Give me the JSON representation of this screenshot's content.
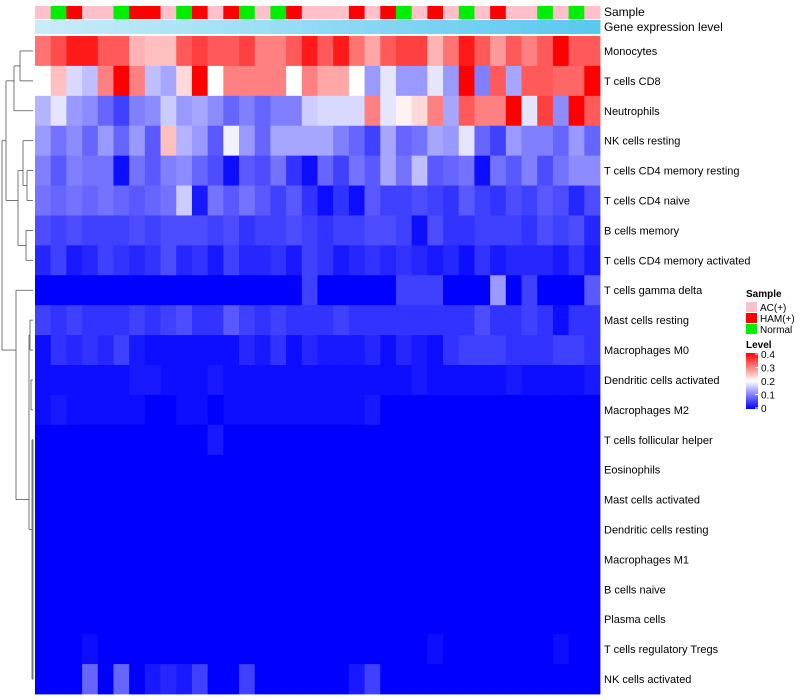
{
  "chart_data": {
    "type": "heatmap",
    "title": "",
    "annotation_rows": {
      "sample_label": "Sample",
      "expression_label": "Gene expression level"
    },
    "sample_groups": [
      "AC(+)",
      "HAM(+)",
      "Normal"
    ],
    "sample_group_colors": {
      "AC(+)": "#ffc0cb",
      "HAM(+)": "#ff0000",
      "Normal": "#00ee00"
    },
    "samples": [
      "AC(+)",
      "Normal",
      "HAM(+)",
      "AC(+)",
      "AC(+)",
      "Normal",
      "HAM(+)",
      "HAM(+)",
      "AC(+)",
      "Normal",
      "HAM(+)",
      "AC(+)",
      "HAM(+)",
      "Normal",
      "AC(+)",
      "Normal",
      "HAM(+)",
      "AC(+)",
      "AC(+)",
      "AC(+)",
      "HAM(+)",
      "AC(+)",
      "HAM(+)",
      "Normal",
      "AC(+)",
      "HAM(+)",
      "AC(+)",
      "Normal",
      "AC(+)",
      "HAM(+)",
      "AC(+)",
      "AC(+)",
      "Normal",
      "AC(+)",
      "Normal",
      "AC(+)"
    ],
    "expression_bar_colors": [
      "#c8ecf8",
      "#5bc8ef"
    ],
    "rows": [
      "Monocytes",
      "T cells CD8",
      "Neutrophils",
      "NK cells resting",
      "T cells CD4 memory resting",
      "T cells CD4 naive",
      "B cells memory",
      "T cells CD4 memory activated",
      "T cells gamma delta",
      "Mast cells resting",
      "Macrophages M0",
      "Dendritic cells activated",
      "Macrophages M2",
      "T cells follicular helper",
      "Eosinophils",
      "Mast cells activated",
      "Dendritic cells resting",
      "Macrophages M1",
      "B cells naive",
      "Plasma cells",
      "T cells regulatory  Tregs",
      "NK cells activated"
    ],
    "values": [
      [
        0.31,
        0.34,
        0.38,
        0.38,
        0.33,
        0.33,
        0.26,
        0.25,
        0.25,
        0.33,
        0.35,
        0.33,
        0.33,
        0.35,
        0.3,
        0.3,
        0.33,
        0.38,
        0.33,
        0.38,
        0.31,
        0.27,
        0.33,
        0.35,
        0.35,
        0.26,
        0.31,
        0.38,
        0.33,
        0.28,
        0.33,
        0.3,
        0.33,
        0.4,
        0.33,
        0.33
      ],
      [
        0.2,
        0.25,
        0.17,
        0.15,
        0.3,
        0.4,
        0.3,
        0.15,
        0.13,
        0.23,
        0.4,
        0.2,
        0.3,
        0.3,
        0.3,
        0.3,
        0.2,
        0.3,
        0.27,
        0.27,
        0.2,
        0.12,
        0.18,
        0.12,
        0.12,
        0.18,
        0.12,
        0.4,
        0.1,
        0.33,
        0.13,
        0.33,
        0.33,
        0.32,
        0.32,
        0.4
      ],
      [
        0.14,
        0.18,
        0.12,
        0.11,
        0.08,
        0.05,
        0.1,
        0.11,
        0.16,
        0.12,
        0.13,
        0.11,
        0.08,
        0.1,
        0.08,
        0.1,
        0.1,
        0.16,
        0.17,
        0.17,
        0.17,
        0.3,
        0.18,
        0.21,
        0.23,
        0.3,
        0.13,
        0.33,
        0.3,
        0.3,
        0.4,
        0.18,
        0.35,
        0.11,
        0.4,
        0.33
      ],
      [
        0.12,
        0.09,
        0.11,
        0.08,
        0.12,
        0.08,
        0.12,
        0.07,
        0.25,
        0.14,
        0.12,
        0.07,
        0.19,
        0.12,
        0.08,
        0.13,
        0.13,
        0.13,
        0.13,
        0.1,
        0.08,
        0.05,
        0.13,
        0.08,
        0.09,
        0.13,
        0.12,
        0.18,
        0.08,
        0.05,
        0.12,
        0.1,
        0.1,
        0.08,
        0.12,
        0.08
      ],
      [
        0.1,
        0.07,
        0.1,
        0.09,
        0.09,
        0.01,
        0.09,
        0.07,
        0.1,
        0.11,
        0.08,
        0.06,
        0.01,
        0.07,
        0.06,
        0.09,
        0.04,
        0.01,
        0.08,
        0.05,
        0.09,
        0.07,
        0.13,
        0.09,
        0.15,
        0.07,
        0.08,
        0.09,
        0.01,
        0.09,
        0.07,
        0.1,
        0.06,
        0.09,
        0.11,
        0.11
      ],
      [
        0.09,
        0.08,
        0.09,
        0.08,
        0.09,
        0.08,
        0.07,
        0.08,
        0.09,
        0.16,
        0.02,
        0.09,
        0.07,
        0.09,
        0.07,
        0.05,
        0.07,
        0.04,
        0.01,
        0.04,
        0.01,
        0.07,
        0.05,
        0.05,
        0.06,
        0.05,
        0.04,
        0.07,
        0.05,
        0.04,
        0.06,
        0.05,
        0.07,
        0.06,
        0.03,
        0.06
      ],
      [
        0.06,
        0.05,
        0.06,
        0.05,
        0.05,
        0.05,
        0.06,
        0.05,
        0.06,
        0.06,
        0.06,
        0.05,
        0.06,
        0.04,
        0.05,
        0.05,
        0.06,
        0.05,
        0.04,
        0.05,
        0.05,
        0.06,
        0.06,
        0.05,
        0.01,
        0.06,
        0.04,
        0.04,
        0.05,
        0.05,
        0.05,
        0.04,
        0.06,
        0.05,
        0.06,
        0.03
      ],
      [
        0.03,
        0.05,
        0.02,
        0.03,
        0.05,
        0.04,
        0.03,
        0.04,
        0.06,
        0.03,
        0.04,
        0.02,
        0.05,
        0.03,
        0.03,
        0.04,
        0.02,
        0.05,
        0.04,
        0.02,
        0.03,
        0.04,
        0.03,
        0.04,
        0.03,
        0.02,
        0.03,
        0.01,
        0.04,
        0.02,
        0.03,
        0.03,
        0.03,
        0.02,
        0.04,
        0.02
      ],
      [
        0.0,
        0.0,
        0.0,
        0.0,
        0.0,
        0.0,
        0.0,
        0.0,
        0.0,
        0.0,
        0.0,
        0.0,
        0.0,
        0.0,
        0.0,
        0.0,
        0.0,
        0.05,
        0.0,
        0.0,
        0.0,
        0.0,
        0.0,
        0.05,
        0.05,
        0.05,
        0.0,
        0.0,
        0.0,
        0.12,
        0.0,
        0.05,
        0.0,
        0.0,
        0.0,
        0.07
      ],
      [
        0.05,
        0.04,
        0.05,
        0.04,
        0.04,
        0.04,
        0.05,
        0.04,
        0.05,
        0.06,
        0.04,
        0.04,
        0.07,
        0.05,
        0.04,
        0.05,
        0.04,
        0.04,
        0.04,
        0.05,
        0.04,
        0.04,
        0.04,
        0.04,
        0.04,
        0.04,
        0.04,
        0.04,
        0.06,
        0.04,
        0.04,
        0.05,
        0.04,
        0.01,
        0.04,
        0.04
      ],
      [
        0.01,
        0.04,
        0.03,
        0.04,
        0.03,
        0.05,
        0.02,
        0.01,
        0.01,
        0.01,
        0.01,
        0.01,
        0.01,
        0.03,
        0.02,
        0.04,
        0.01,
        0.03,
        0.02,
        0.02,
        0.02,
        0.03,
        0.01,
        0.03,
        0.02,
        0.01,
        0.04,
        0.05,
        0.05,
        0.05,
        0.04,
        0.04,
        0.04,
        0.05,
        0.05,
        0.04
      ],
      [
        0.01,
        0.01,
        0.01,
        0.01,
        0.01,
        0.01,
        0.02,
        0.02,
        0.01,
        0.01,
        0.01,
        0.02,
        0.01,
        0.01,
        0.01,
        0.01,
        0.01,
        0.01,
        0.01,
        0.01,
        0.01,
        0.01,
        0.01,
        0.01,
        0.02,
        0.01,
        0.01,
        0.01,
        0.01,
        0.01,
        0.02,
        0.01,
        0.01,
        0.01,
        0.01,
        0.02
      ],
      [
        0.01,
        0.02,
        0.01,
        0.01,
        0.01,
        0.01,
        0.01,
        0.0,
        0.0,
        0.01,
        0.01,
        0.0,
        0.01,
        0.01,
        0.01,
        0.01,
        0.01,
        0.01,
        0.01,
        0.01,
        0.01,
        0.02,
        0.0,
        0.0,
        0.0,
        0.0,
        0.0,
        0.0,
        0.0,
        0.0,
        0.0,
        0.0,
        0.0,
        0.0,
        0.0,
        0.0
      ],
      [
        0.0,
        0.0,
        0.0,
        0.0,
        0.0,
        0.0,
        0.0,
        0.0,
        0.0,
        0.0,
        0.0,
        0.02,
        0.0,
        0.0,
        0.0,
        0.0,
        0.0,
        0.0,
        0.0,
        0.0,
        0.0,
        0.0,
        0.0,
        0.0,
        0.0,
        0.0,
        0.0,
        0.0,
        0.0,
        0.0,
        0.0,
        0.0,
        0.0,
        0.0,
        0.0,
        0.0
      ],
      [
        0,
        0,
        0,
        0,
        0,
        0,
        0,
        0,
        0,
        0,
        0,
        0,
        0,
        0,
        0,
        0,
        0,
        0,
        0,
        0,
        0,
        0,
        0,
        0,
        0,
        0,
        0,
        0,
        0,
        0,
        0,
        0,
        0,
        0,
        0,
        0
      ],
      [
        0,
        0,
        0,
        0,
        0,
        0,
        0,
        0,
        0,
        0,
        0,
        0,
        0,
        0,
        0,
        0,
        0,
        0,
        0,
        0,
        0,
        0,
        0,
        0,
        0,
        0,
        0,
        0,
        0,
        0,
        0,
        0,
        0,
        0,
        0,
        0
      ],
      [
        0,
        0,
        0,
        0,
        0,
        0,
        0,
        0,
        0,
        0,
        0,
        0,
        0,
        0,
        0,
        0,
        0,
        0,
        0,
        0,
        0,
        0,
        0,
        0,
        0,
        0,
        0,
        0,
        0,
        0,
        0,
        0,
        0,
        0,
        0,
        0
      ],
      [
        0,
        0,
        0,
        0,
        0,
        0,
        0,
        0,
        0,
        0,
        0,
        0,
        0,
        0,
        0,
        0,
        0,
        0,
        0,
        0,
        0,
        0,
        0,
        0,
        0,
        0,
        0,
        0,
        0,
        0,
        0,
        0,
        0,
        0,
        0,
        0
      ],
      [
        0,
        0,
        0,
        0,
        0,
        0,
        0,
        0,
        0,
        0,
        0,
        0,
        0,
        0,
        0,
        0,
        0,
        0,
        0,
        0,
        0,
        0,
        0,
        0,
        0,
        0,
        0,
        0,
        0,
        0,
        0,
        0,
        0,
        0,
        0,
        0
      ],
      [
        0,
        0,
        0,
        0,
        0,
        0,
        0,
        0,
        0,
        0,
        0,
        0,
        0,
        0,
        0,
        0,
        0,
        0,
        0,
        0,
        0,
        0,
        0,
        0,
        0,
        0,
        0,
        0,
        0,
        0,
        0,
        0,
        0,
        0,
        0,
        0
      ],
      [
        0.0,
        0.0,
        0.0,
        0.01,
        0.0,
        0.0,
        0.0,
        0.0,
        0.0,
        0.0,
        0.0,
        0.0,
        0.0,
        0.0,
        0.0,
        0.0,
        0.0,
        0.0,
        0.0,
        0.0,
        0.0,
        0.0,
        0.0,
        0.0,
        0.0,
        0.01,
        0.0,
        0.0,
        0.0,
        0.0,
        0.0,
        0.0,
        0.0,
        0.01,
        0.0,
        0.0
      ],
      [
        0.0,
        0.0,
        0.0,
        0.08,
        0.0,
        0.08,
        0.0,
        0.02,
        0.03,
        0.02,
        0.05,
        0.0,
        0.0,
        0.05,
        0.0,
        0.0,
        0.0,
        0.0,
        0.0,
        0.0,
        0.02,
        0.05,
        0.0,
        0.0,
        0.0,
        0.0,
        0.0,
        0.0,
        0.0,
        0.0,
        0.0,
        0.0,
        0.0,
        0.0,
        0.0,
        0.0
      ]
    ],
    "color_scale": {
      "min": 0,
      "max": 0.4,
      "low": "#0000ff",
      "mid": "#ffffff",
      "high": "#ff0000",
      "midpoint": 0.2
    },
    "legend": {
      "sample_title": "Sample",
      "level_title": "Level",
      "level_ticks": [
        "0.4",
        "0.3",
        "0.2",
        "0.1",
        "0"
      ],
      "placement": "right"
    }
  }
}
